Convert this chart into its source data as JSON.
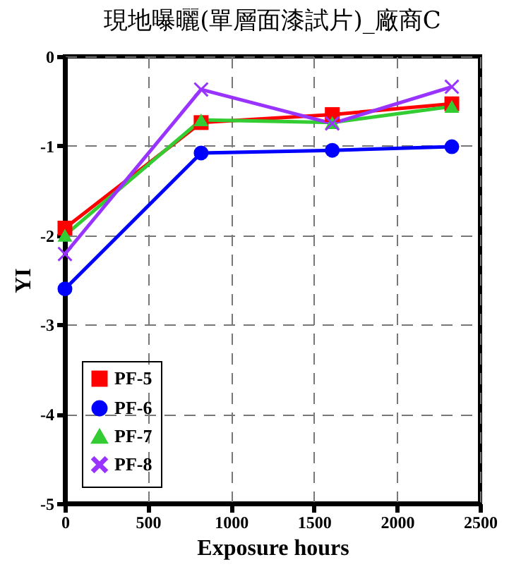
{
  "chart_data": {
    "type": "line",
    "title": "現地曝曬(單層面漆試片)_廠商C",
    "xlabel": "Exposure hours",
    "ylabel": "YI",
    "x": [
      0,
      820,
      1610,
      2330
    ],
    "series": [
      {
        "name": "PF-5",
        "color": "#ff0000",
        "marker": "square",
        "values": [
          -1.92,
          -0.74,
          -0.65,
          -0.53
        ]
      },
      {
        "name": "PF-6",
        "color": "#0000ff",
        "marker": "circle",
        "values": [
          -2.6,
          -1.08,
          -1.05,
          -1.01
        ]
      },
      {
        "name": "PF-7",
        "color": "#33cc33",
        "marker": "triangle",
        "values": [
          -2.0,
          -0.71,
          -0.74,
          -0.56
        ]
      },
      {
        "name": "PF-8",
        "color": "#9933ff",
        "marker": "cross",
        "values": [
          -2.21,
          -0.37,
          -0.75,
          -0.34
        ]
      }
    ],
    "xlim": [
      0,
      2500
    ],
    "xticks": [
      0,
      500,
      1000,
      1500,
      2000,
      2500
    ],
    "ylim": [
      -5,
      0
    ],
    "yticks": [
      -5,
      -4,
      -3,
      -2,
      -1,
      0
    ],
    "grid": true,
    "legend": "bottom left",
    "line_style": "solid"
  }
}
